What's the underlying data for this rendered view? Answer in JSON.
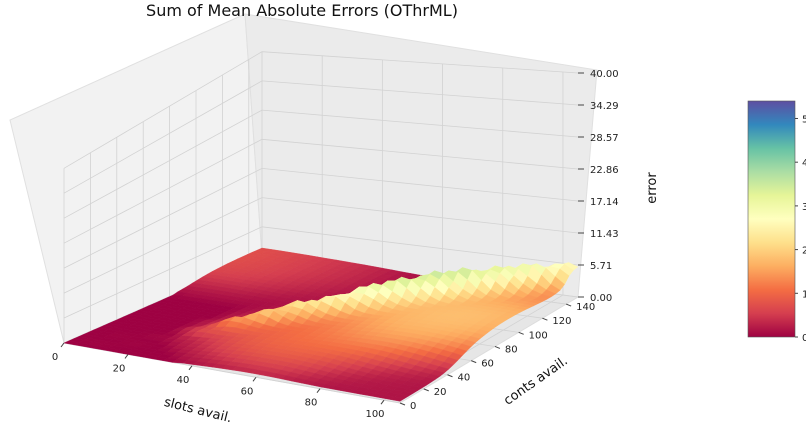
{
  "chart_data": {
    "type": "surface3d",
    "title": "Sum of Mean Absolute Errors (OThrML)",
    "xlabel": "slots avail.",
    "ylabel": "conts avail.",
    "zlabel": "error",
    "xlim": [
      0,
      105
    ],
    "ylim": [
      0,
      150
    ],
    "zlim": [
      0,
      40
    ],
    "xticks": [
      "0",
      "20",
      "40",
      "60",
      "80",
      "100"
    ],
    "yticks": [
      "0",
      "20",
      "40",
      "60",
      "80",
      "100",
      "120",
      "140"
    ],
    "zticks": [
      "0.00",
      "5.71",
      "11.43",
      "17.14",
      "22.86",
      "28.57",
      "34.29",
      "40.00"
    ],
    "grid": true,
    "colormap": "Spectral",
    "colorbar": {
      "ticks": [
        "0",
        "1",
        "2",
        "3",
        "4",
        "5"
      ],
      "range": [
        0,
        5.4
      ],
      "stops": [
        "#9e0142",
        "#d53e4f",
        "#f46d43",
        "#fdae61",
        "#fee08b",
        "#ffffbf",
        "#e6f598",
        "#abdda4",
        "#66c2a5",
        "#3288bd",
        "#5e4fa2"
      ]
    },
    "surface_description_points": [
      {
        "slots": 5,
        "conts": 140,
        "error": 2.5
      },
      {
        "slots": 20,
        "conts": 140,
        "error": 1.0
      },
      {
        "slots": 60,
        "conts": 45,
        "error": 3.0
      },
      {
        "slots": 80,
        "conts": 70,
        "error": 5.0
      },
      {
        "slots": 95,
        "conts": 95,
        "error": 5.3
      },
      {
        "slots": 100,
        "conts": 130,
        "error": 3.5
      },
      {
        "slots": 100,
        "conts": 10,
        "error": 0.5
      }
    ]
  }
}
